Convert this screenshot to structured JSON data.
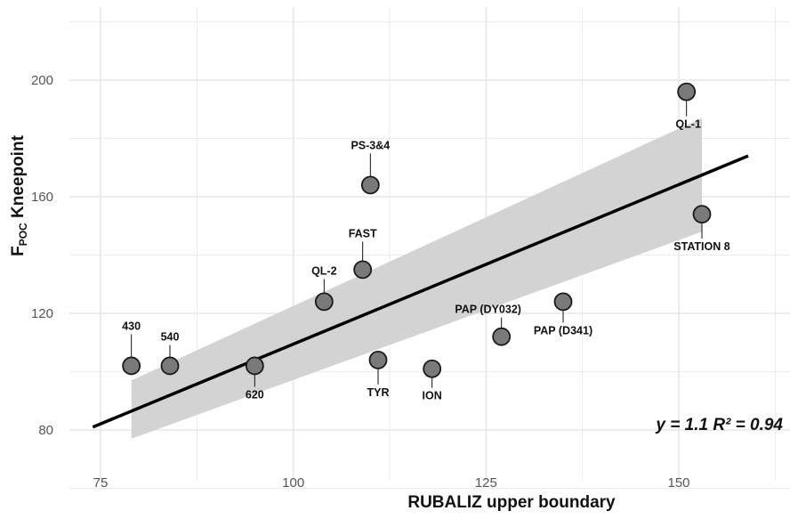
{
  "chart_data": {
    "type": "scatter",
    "xlabel": "RUBALIZ upper boundary",
    "ylabel_main": "F",
    "ylabel_sub": "POC",
    "ylabel_rest": " Kneepoint",
    "xlim": [
      70,
      166
    ],
    "ylim": [
      75,
      215
    ],
    "x_ticks": [
      75,
      100,
      125,
      150
    ],
    "y_ticks": [
      80,
      120,
      160,
      200
    ],
    "grid": true,
    "points": [
      {
        "label": "430",
        "x": 79,
        "y": 102
      },
      {
        "label": "540",
        "x": 84,
        "y": 102
      },
      {
        "label": "620",
        "x": 95,
        "y": 102
      },
      {
        "label": "QL-2",
        "x": 104,
        "y": 124
      },
      {
        "label": "FAST",
        "x": 109,
        "y": 135
      },
      {
        "label": "PS-3&4",
        "x": 110,
        "y": 164
      },
      {
        "label": "TYR",
        "x": 111,
        "y": 104
      },
      {
        "label": "ION",
        "x": 118,
        "y": 101
      },
      {
        "label": "PAP (DY032)",
        "x": 127,
        "y": 112
      },
      {
        "label": "PAP (D341)",
        "x": 135,
        "y": 124
      },
      {
        "label": "QL-1",
        "x": 151,
        "y": 196
      },
      {
        "label": "STATION 8",
        "x": 153,
        "y": 154
      }
    ],
    "fit_line": {
      "x": [
        74,
        159
      ],
      "y": [
        81,
        174
      ]
    },
    "confidence_band": {
      "x": [
        79,
        153
      ],
      "lower": [
        77,
        148
      ],
      "upper": [
        97,
        187
      ]
    },
    "annotation": "y = 1.1 R² = 0.94",
    "colors": {
      "point_fill": "#7a7a7a",
      "point_stroke": "#1a1a1a",
      "band": "#d3d3d3",
      "line": "#000000",
      "grid": "#e6e6e6"
    }
  }
}
